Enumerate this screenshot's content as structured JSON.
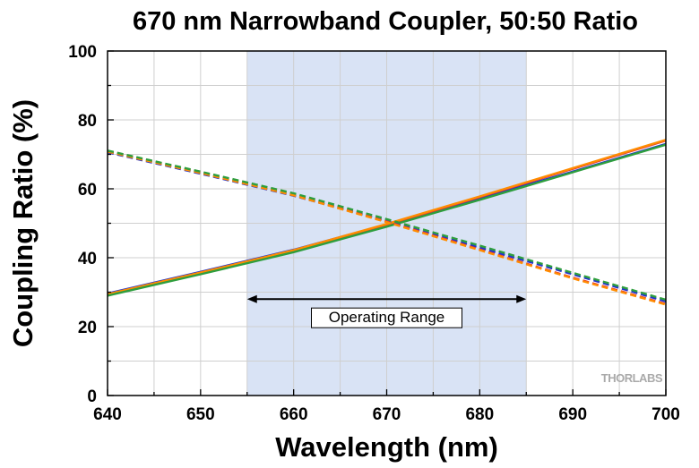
{
  "chart_data": {
    "type": "line",
    "title": "670 nm Narrowband Coupler, 50:50 Ratio",
    "xlabel": "Wavelength (nm)",
    "ylabel": "Coupling Ratio (%)",
    "xlim": [
      640,
      700
    ],
    "ylim": [
      0,
      100
    ],
    "xticks": [
      640,
      650,
      660,
      670,
      680,
      690,
      700
    ],
    "yticks": [
      0,
      20,
      40,
      60,
      80,
      100
    ],
    "grid": true,
    "legend": "none",
    "shaded_region": {
      "x": [
        655,
        685
      ],
      "color": "#d9e3f5"
    },
    "annotation": {
      "text": "Operating Range",
      "x_range": [
        655,
        685
      ],
      "y": 28
    },
    "watermark": "THORLABS",
    "series": [
      {
        "style": "solid",
        "color": "#2233cc",
        "x": [
          640,
          650,
          660,
          670,
          680,
          690,
          700
        ],
        "values": [
          29.6,
          35.9,
          42.3,
          49.6,
          57.3,
          65.0,
          73.0
        ]
      },
      {
        "style": "solid",
        "color": "#e53935",
        "x": [
          640,
          650,
          660,
          670,
          680,
          690,
          700
        ],
        "values": [
          29.2,
          35.5,
          42.0,
          49.5,
          57.6,
          65.8,
          74.0
        ]
      },
      {
        "style": "solid",
        "color": "#ff8c00",
        "x": [
          640,
          650,
          660,
          670,
          680,
          690,
          700
        ],
        "values": [
          29.4,
          35.7,
          42.2,
          49.8,
          57.8,
          66.0,
          74.2
        ]
      },
      {
        "style": "solid",
        "color": "#2e9e3e",
        "x": [
          640,
          650,
          660,
          670,
          680,
          690,
          700
        ],
        "values": [
          29.0,
          35.2,
          41.6,
          49.0,
          56.8,
          64.8,
          72.8
        ]
      },
      {
        "style": "dashed",
        "color": "#2233cc",
        "x": [
          640,
          650,
          660,
          670,
          680,
          690,
          700
        ],
        "values": [
          70.6,
          64.4,
          58.0,
          50.6,
          42.9,
          35.2,
          27.3
        ]
      },
      {
        "style": "dashed",
        "color": "#e53935",
        "x": [
          640,
          650,
          660,
          670,
          680,
          690,
          700
        ],
        "values": [
          71.0,
          64.8,
          58.3,
          50.5,
          42.4,
          34.2,
          26.6
        ]
      },
      {
        "style": "dashed",
        "color": "#ff8c00",
        "x": [
          640,
          650,
          660,
          670,
          680,
          690,
          700
        ],
        "values": [
          70.8,
          64.6,
          58.1,
          50.3,
          42.2,
          34.0,
          26.4
        ]
      },
      {
        "style": "dashed",
        "color": "#2e9e3e",
        "x": [
          640,
          650,
          660,
          670,
          680,
          690,
          700
        ],
        "values": [
          71.1,
          65.0,
          58.7,
          51.2,
          43.5,
          35.6,
          27.8
        ]
      }
    ]
  }
}
